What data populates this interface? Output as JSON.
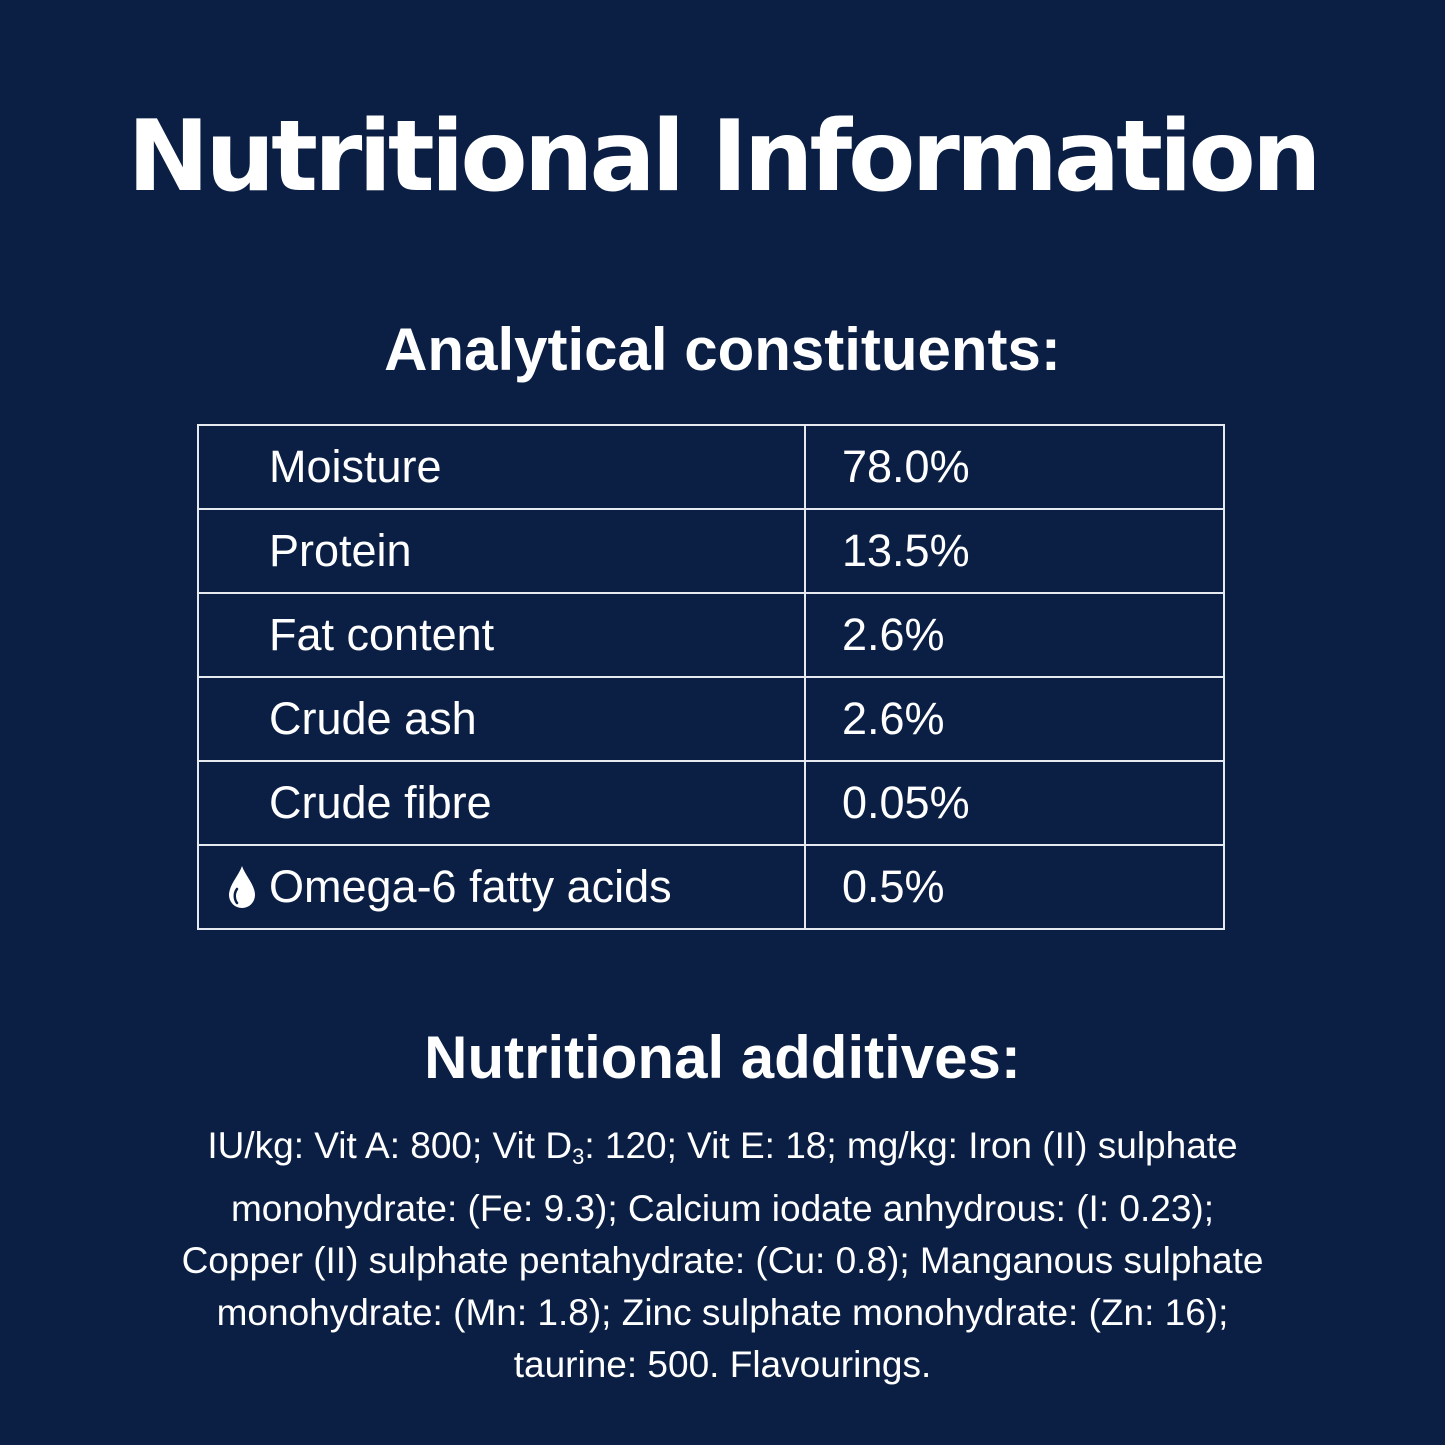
{
  "title": "Nutritional Information",
  "analytical": {
    "heading": "Analytical constituents:",
    "rows": [
      {
        "label": "Moisture",
        "value": "78.0%"
      },
      {
        "label": "Protein",
        "value": "13.5%"
      },
      {
        "label": "Fat content",
        "value": "2.6%"
      },
      {
        "label": "Crude ash",
        "value": "2.6%"
      },
      {
        "label": "Crude fibre",
        "value": "0.05%"
      },
      {
        "label": "Omega-6 fatty acids",
        "value": "0.5%",
        "icon": "drop-icon"
      }
    ]
  },
  "additives": {
    "heading": "Nutritional additives:",
    "line1_a": "IU/kg: Vit A: 800; Vit D",
    "line1_sub": "3",
    "line1_b": ": 120; Vit E: 18; mg/kg: Iron (II) sulphate",
    "line2": "monohydrate: (Fe: 9.3); Calcium iodate anhydrous: (I: 0.23);",
    "line3": "Copper (II) sulphate pentahydrate: (Cu: 0.8); Manganous sulphate",
    "line4": "monohydrate: (Mn: 1.8); Zinc sulphate monohydrate: (Zn: 16);",
    "line5": "taurine: 500. Flavourings."
  },
  "colors": {
    "background": "#0b1f45",
    "text": "#ffffff"
  }
}
